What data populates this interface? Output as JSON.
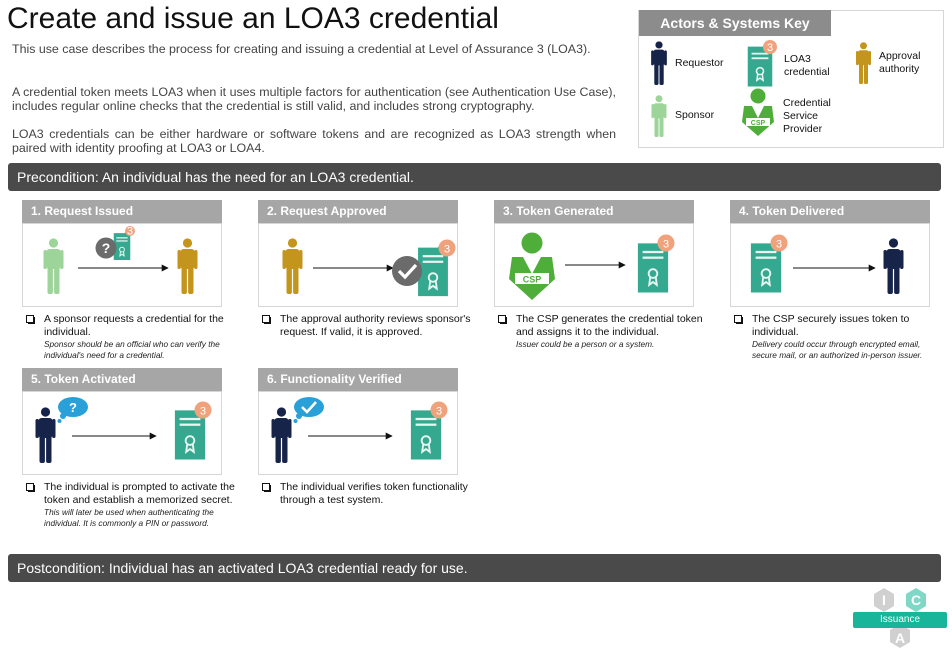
{
  "title": "Create and issue an LOA3 credential",
  "intro": [
    "This use case describes the process for creating and issuing a credential at Level of Assurance 3 (LOA3).",
    "A credential token meets LOA3 when it uses multiple factors for authentication (see Authentication Use Case), includes regular online checks that the credential is still valid, and includes strong cryptography.",
    "LOA3 credentials can be either hardware or software tokens and are recognized as LOA3 strength when paired with identity proofing at LOA3 or LOA4."
  ],
  "key": {
    "title": "Actors & Systems Key",
    "requestor": "Requestor",
    "loa3_credential": "LOA3 credential",
    "approval_authority": "Approval authority",
    "sponsor": "Sponsor",
    "csp": "Credential Service Provider",
    "badge": "3",
    "csp_tag": "CSP"
  },
  "precondition": "Precondition: An individual has the need for an LOA3 credential.",
  "postcondition": "Postcondition: Individual has an activated LOA3 credential ready for use.",
  "steps": [
    {
      "title": "1. Request Issued",
      "text": "A sponsor requests a credential for the individual.",
      "note": "Sponsor should be an official who can verify the individual's need for a credential."
    },
    {
      "title": "2. Request Approved",
      "text": "The approval authority reviews sponsor's request. If valid, it is approved.",
      "note": ""
    },
    {
      "title": "3. Token Generated",
      "text": "The CSP generates the credential token and assigns it to the individual.",
      "note": "Issuer could be a person or a system."
    },
    {
      "title": "4. Token Delivered",
      "text": "The CSP securely issues token to individual.",
      "note": "Delivery could occur through encrypted email, secure mail, or an authorized in-person issuer."
    },
    {
      "title": "5. Token Activated",
      "text": "The individual is prompted to activate the token and establish a memorized secret.",
      "note": "This will later be used when authenticating the individual. It is commonly a PIN or password."
    },
    {
      "title": "6. Functionality Verified",
      "text": "The individual verifies token functionality through a test system.",
      "note": ""
    }
  ],
  "logo": {
    "letter_i": "I",
    "letter_c": "C",
    "letter_a": "A",
    "label": "Issuance"
  },
  "colors": {
    "requestor": "#17244a",
    "sponsor": "#9dd49a",
    "approval": "#c4951c",
    "credential": "#35a98f",
    "badge": "#f0a27c",
    "csp": "#4fae3a",
    "logo": "#19b59a"
  }
}
